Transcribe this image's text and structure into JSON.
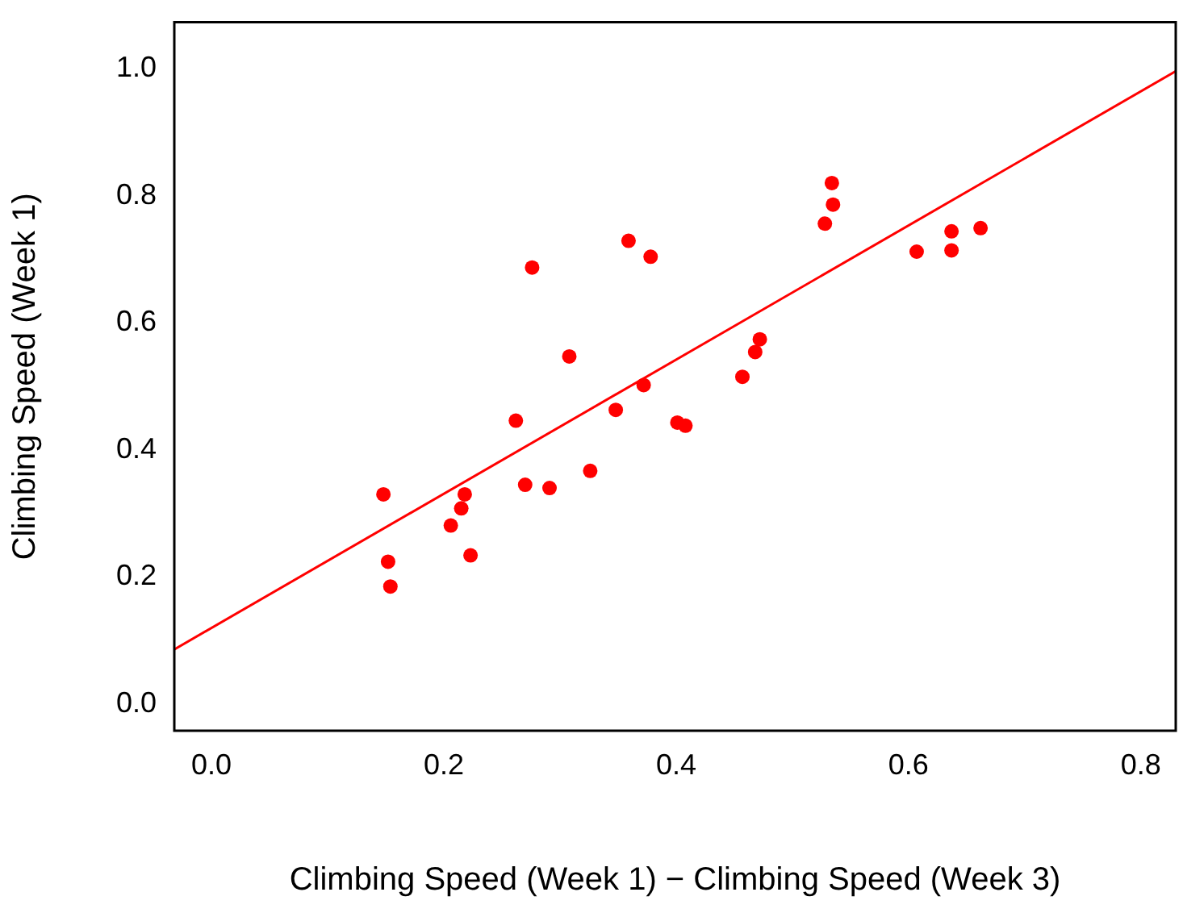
{
  "chart_data": {
    "type": "scatter",
    "xlabel": "Climbing Speed (Week 1) − Climbing Speed (Week 3)",
    "ylabel": "Climbing Speed (Week 1)",
    "xlim": [
      -0.032,
      0.83
    ],
    "xticks": [
      {
        "value": 0,
        "label": "0.0"
      },
      0.2,
      0.4,
      0.6,
      0.8
    ],
    "ylim": [
      -0.042,
      1.073
    ],
    "yticks": [
      {
        "value": 0,
        "label": "0.0"
      },
      0.2,
      0.4,
      0.6,
      0.8,
      {
        "value": 1,
        "label": "1.0"
      }
    ],
    "grid": false,
    "legend": false,
    "series": [
      {
        "type": "scatter",
        "marker": "circle",
        "color": "#ff0000",
        "x": [
          0.148,
          0.152,
          0.154,
          0.206,
          0.215,
          0.218,
          0.223,
          0.262,
          0.27,
          0.276,
          0.291,
          0.308,
          0.326,
          0.348,
          0.359,
          0.372,
          0.378,
          0.401,
          0.408,
          0.457,
          0.468,
          0.472,
          0.528,
          0.534,
          0.535,
          0.607,
          0.637,
          0.637,
          0.662
        ],
        "values": [
          0.33,
          0.224,
          0.185,
          0.281,
          0.308,
          0.33,
          0.234,
          0.446,
          0.345,
          0.687,
          0.34,
          0.547,
          0.367,
          0.463,
          0.729,
          0.502,
          0.704,
          0.443,
          0.438,
          0.515,
          0.554,
          0.574,
          0.756,
          0.82,
          0.786,
          0.712,
          0.744,
          0.714,
          0.749
        ]
      },
      {
        "type": "line",
        "marker": "none",
        "color": "#ff0000",
        "x": [
          -0.032,
          0.83
        ],
        "values": [
          0.086,
          0.996
        ]
      }
    ]
  }
}
